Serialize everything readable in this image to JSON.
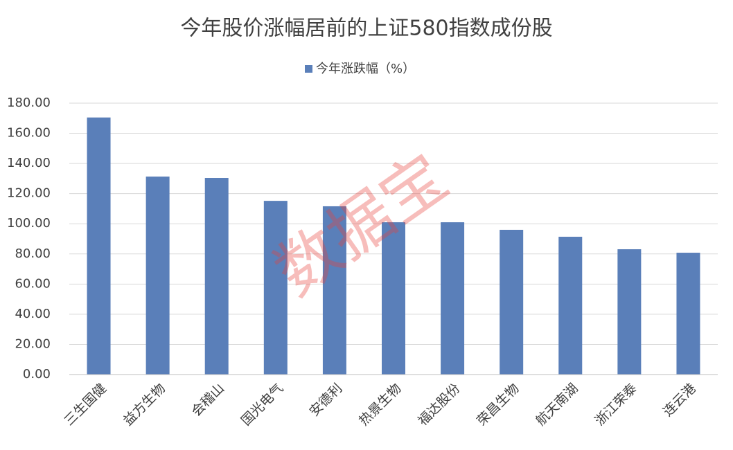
{
  "chart_data": {
    "type": "bar",
    "title": "今年股价涨幅居前的上证580指数成份股",
    "watermark": "数据宝",
    "categories": [
      "三生国健",
      "益方生物",
      "会稽山",
      "国光电气",
      "安德利",
      "热景生物",
      "福达股份",
      "荣昌生物",
      "航天南湖",
      "浙江荣泰",
      "连云港"
    ],
    "series": [
      {
        "name": "今年涨跌幅（%）",
        "color": "#5a7fb9",
        "values": [
          170.5,
          131.3,
          130.4,
          115.2,
          111.6,
          101.0,
          101.0,
          96.0,
          91.4,
          83.1,
          80.8
        ]
      }
    ],
    "ylim": [
      0,
      180
    ],
    "yticks": [
      {
        "value": 0,
        "label": "0.00"
      },
      {
        "value": 20,
        "label": "20.00"
      },
      {
        "value": 40,
        "label": "40.00"
      },
      {
        "value": 60,
        "label": "60.00"
      },
      {
        "value": 80,
        "label": "80.00"
      },
      {
        "value": 100,
        "label": "100.00"
      },
      {
        "value": 120,
        "label": "120.00"
      },
      {
        "value": 140,
        "label": "140.00"
      },
      {
        "value": 160,
        "label": "160.00"
      },
      {
        "value": 180,
        "label": "180.00"
      }
    ],
    "grid": true
  }
}
